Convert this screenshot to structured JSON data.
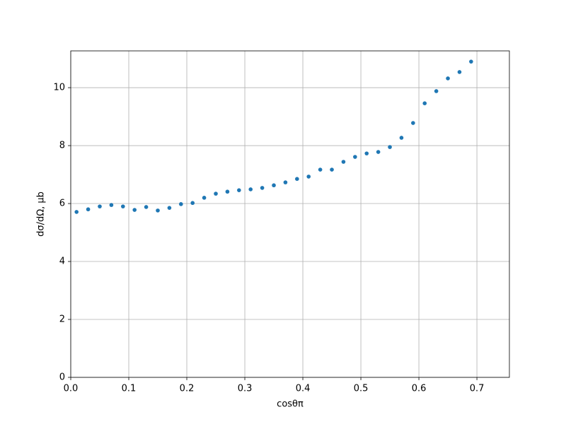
{
  "chart_data": {
    "type": "scatter",
    "x_label": "cosθπ",
    "y_label": "dσ/dΩ, μb",
    "x": [
      0.01,
      0.03,
      0.05,
      0.07,
      0.09,
      0.11,
      0.13,
      0.15,
      0.17,
      0.19,
      0.21,
      0.23,
      0.25,
      0.27,
      0.29,
      0.31,
      0.33,
      0.35,
      0.37,
      0.39,
      0.41,
      0.43,
      0.45,
      0.47,
      0.49,
      0.51,
      0.53,
      0.55,
      0.57,
      0.59,
      0.61,
      0.63,
      0.65,
      0.67,
      0.69
    ],
    "series": [
      {
        "color": "#1f77b4",
        "values": [
          5.71,
          5.8,
          5.9,
          5.95,
          5.9,
          5.78,
          5.88,
          5.76,
          5.85,
          5.98,
          6.02,
          6.2,
          6.34,
          6.41,
          6.46,
          6.49,
          6.54,
          6.63,
          6.73,
          6.85,
          6.93,
          7.17,
          7.17,
          7.44,
          7.61,
          7.73,
          7.78,
          7.95,
          8.27,
          8.78,
          9.46,
          9.88,
          10.32,
          10.54,
          10.9
        ]
      }
    ],
    "xlim": [
      0,
      0.756
    ],
    "ylim": [
      0,
      11.27
    ],
    "xticks": [
      {
        "value": 0,
        "label": "0.0"
      },
      0.1,
      0.2,
      0.3,
      0.4,
      0.5,
      0.6,
      0.7
    ],
    "yticks": [
      0,
      2,
      4,
      6,
      8,
      10
    ],
    "grid": true
  }
}
